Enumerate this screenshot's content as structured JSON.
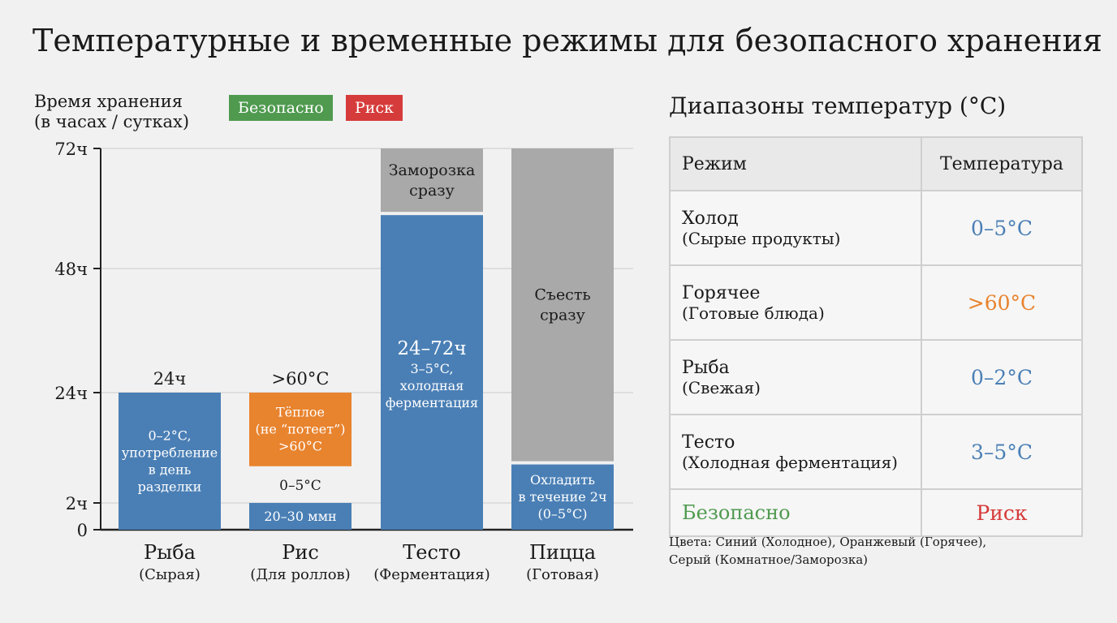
{
  "title": "Температурные и временные режимы для безопасного хранения",
  "colors": {
    "cold": "#4a7fb5",
    "hot": "#e8832e",
    "room": "#a9a9a9",
    "safe": "#4f9a4f",
    "risk": "#d63b3b"
  },
  "legend": [
    {
      "label": "Безопасно",
      "color": "#4f9a4f"
    },
    {
      "label": "Риск",
      "color": "#d63b3b"
    }
  ],
  "chart_data": {
    "type": "bar",
    "stacked": true,
    "ylabel_line1": "Время хранения",
    "ylabel_line2": "(в часах / сутках)",
    "yticks": [
      {
        "value": 0,
        "label": "0"
      },
      {
        "value": 2,
        "label": "2ч"
      },
      {
        "value": 24,
        "label": "24ч"
      },
      {
        "value": 48,
        "label": "48ч"
      },
      {
        "value": 72,
        "label": "72ч"
      }
    ],
    "ylim": [
      0,
      72
    ],
    "grid": true,
    "categories": [
      {
        "name": "Рыба",
        "sub": "(Сырая)",
        "top_label": "24ч",
        "segments": [
          {
            "from": 0,
            "to": 24,
            "kind": "cold",
            "lines": [
              "0–2°C,",
              "употребление",
              "в день",
              "разделки"
            ]
          }
        ]
      },
      {
        "name": "Рис",
        "sub": "(Для роллов)",
        "top_label": ">60°C",
        "segments": [
          {
            "from": 0,
            "to": 2,
            "kind": "cold",
            "lines": [
              "20–30 ммн"
            ]
          },
          {
            "from": 9,
            "to": 24,
            "kind": "hot",
            "lines": [
              "Тёплое",
              "(не “потеет”)",
              ">60°C"
            ]
          }
        ],
        "mid_label": "0–5°C"
      },
      {
        "name": "Тесто",
        "sub": "(Ферментация)",
        "segments": [
          {
            "from": 0,
            "to": 59,
            "kind": "cold",
            "big": "24–72ч",
            "lines": [
              "3–5°C,",
              "холодная",
              "ферментация"
            ]
          },
          {
            "from": 59,
            "to": 72,
            "kind": "room",
            "lines": [
              "Заморозка",
              "сразу"
            ]
          }
        ]
      },
      {
        "name": "Пицца",
        "sub": "(Готовая)",
        "segments": [
          {
            "from": 0,
            "to": 10,
            "kind": "cold",
            "lines": [
              "Охладить",
              "в течение 2ч",
              "(0–5°C)"
            ]
          },
          {
            "from": 10,
            "to": 72,
            "kind": "room",
            "lines": [
              "Съесть",
              "сразу"
            ]
          }
        ]
      }
    ]
  },
  "table": {
    "title": "Диапазоны температур (°C)",
    "headers": [
      "Режим",
      "Температура"
    ],
    "rows": [
      {
        "name": "Холод",
        "sub": "(Сырые продукты)",
        "value": "0–5°C",
        "color": "#4a7fb5"
      },
      {
        "name": "Горячее",
        "sub": "(Готовые блюда)",
        "value": ">60°C",
        "color": "#e8832e"
      },
      {
        "name": "Рыба",
        "sub": "(Свежая)",
        "value": "0–2°C",
        "color": "#4a7fb5"
      },
      {
        "name": "Тесто",
        "sub": "(Холодная ферментация)",
        "value": "3–5°C",
        "color": "#4a7fb5"
      }
    ],
    "footer": [
      "Безопасно",
      "Риск"
    ]
  },
  "note_line1": "Цвета: Синий (Холодное), Оранжевый (Горячее),",
  "note_line2": "Серый (Комнатное/Заморозка)"
}
